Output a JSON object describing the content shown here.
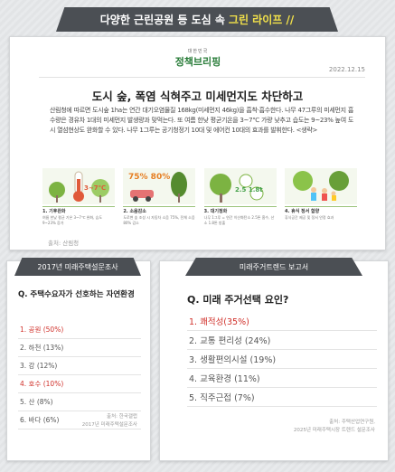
{
  "banner": {
    "text": "다양한 근린공원 등 도심 속",
    "accent": "그린 라이프 //"
  },
  "article": {
    "logo_small": "대한민국",
    "logo_main": "정책브리핑",
    "date": "2022.12.15",
    "headline": "도시 숲, 폭염 식혀주고 미세먼지도 차단하고",
    "body": "산림청에 따르면 도시숲 1ha는 연간 대기오염물질 168kg(미세먼지 46kg)을 흡착·흡수한다. 나무 47그루의 미세먼지 흡수량은 경유차 1대의 미세먼지 발생량과 맞먹는다. 또 여름 한낮 평균기온을 3~7℃ 가량 낮추고 습도는 9~23% 높여 도시 열섬현상도 완화할 수 있다. 나무 1그루는 공기청정기 10대 및 에어컨 10대의 효과를 발휘한다. <생략>",
    "source": "출처: 산림청",
    "infographic": [
      {
        "icon": "thermometer-icon",
        "figure": "3~7℃",
        "title": "1. 기후완화",
        "desc": "여름 한낮 평균 기온 3~7℃ 완화, 습도 9~23% 증가"
      },
      {
        "icon": "car-tree-icon",
        "figure": "75%  80%",
        "title": "2. 소음감소",
        "desc": "도로변 숲 조성 시 자동차 소음 75%, 전체 소음 80% 감소"
      },
      {
        "icon": "tree-2-5-icon",
        "figure": "2.5  1.8t",
        "title": "3. 대기정화",
        "desc": "나무 1그루 = 연간 이산화탄소 2.5톤 흡수, 산소 1.8톤 방출"
      },
      {
        "icon": "family-icon",
        "figure": "",
        "title": "4. 휴식 정서 함양",
        "desc": "휴식공간 제공 및 정서 안정 효과"
      }
    ]
  },
  "survey_left": {
    "tag": "2017년 미래주택설문조사",
    "question": "Q. 주택수요자가 선호하는 자연환경",
    "items": [
      {
        "label": "1. 공원 (50%)",
        "highlight": true
      },
      {
        "label": "2. 하천 (13%)",
        "highlight": false
      },
      {
        "label": "3. 강 (12%)",
        "highlight": false
      },
      {
        "label": "4. 호수 (10%)",
        "highlight": true
      },
      {
        "label": "5. 산 (8%)",
        "highlight": false
      },
      {
        "label": "6. 바다 (6%)",
        "highlight": false
      }
    ],
    "source_line1": "출처: 한국갤럽",
    "source_line2": "2017년 미래주택설문조사"
  },
  "survey_right": {
    "tag": "미래주거트렌드 보고서",
    "question": "Q. 미래 주거선택 요인?",
    "items": [
      {
        "label": "1. 쾌적성(35%)",
        "highlight": true
      },
      {
        "label": "2. 교통 편리성 (24%)",
        "highlight": false
      },
      {
        "label": "3. 생활편의시설 (19%)",
        "highlight": false
      },
      {
        "label": "4. 교육환경 (11%)",
        "highlight": false
      },
      {
        "label": "5. 직주근접 (7%)",
        "highlight": false
      }
    ],
    "source_line1": "출처: 주택산업연구원,",
    "source_line2": "2025년 미래주택시장 트렌드 설문조사"
  },
  "colors": {
    "banner_bg": "#4b4f54",
    "accent_yellow": "#f2e14a",
    "highlight_red": "#d0302a",
    "green": "#6aa84f"
  }
}
